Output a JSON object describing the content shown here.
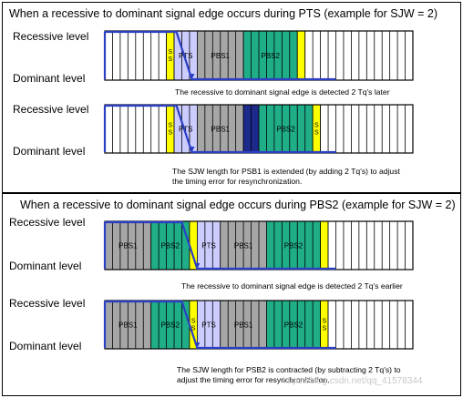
{
  "section1": {
    "title": "When a recessive to dominant signal edge occurs during PTS (example for SJW = 2)",
    "diagrams": [
      {
        "recessive_label": "Recessive level",
        "dominant_label": "Dominant level",
        "caption": [
          "The recessive to dominant signal edge is detected 2 Tq's later"
        ],
        "segments": [
          {
            "kind": "blank",
            "tq": 8
          },
          {
            "kind": "sync",
            "tq": 1,
            "label": "SS"
          },
          {
            "kind": "pts",
            "tq": 3,
            "label": "PTS"
          },
          {
            "kind": "pbs1",
            "tq": 6,
            "label": "PBS1"
          },
          {
            "kind": "pbs2",
            "tq": 7,
            "label": "PBS2"
          },
          {
            "kind": "sync",
            "tq": 1,
            "label": ""
          },
          {
            "kind": "blank",
            "tq": 14
          }
        ]
      },
      {
        "recessive_label": "Recessive level",
        "dominant_label": "Dominant level",
        "caption": [
          "The SJW length for PSB1 is extended (by adding 2 Tq's) to adjust",
          "the timing error for resynchronization."
        ],
        "segments": [
          {
            "kind": "blank",
            "tq": 8
          },
          {
            "kind": "sync",
            "tq": 1,
            "label": "SS"
          },
          {
            "kind": "pts",
            "tq": 3,
            "label": "PTS"
          },
          {
            "kind": "pbs1",
            "tq": 6,
            "label": "PBS1"
          },
          {
            "kind": "sjw",
            "tq": 2,
            "label": ""
          },
          {
            "kind": "pbs2",
            "tq": 7,
            "label": "PBS2"
          },
          {
            "kind": "sync",
            "tq": 1,
            "label": "SS"
          },
          {
            "kind": "blank",
            "tq": 12
          }
        ]
      }
    ]
  },
  "section2": {
    "title": "When a recessive to dominant signal edge occurs during PBS2 (example for SJW = 2)",
    "diagrams": [
      {
        "recessive_label": "Recessive level",
        "dominant_label": "Dominant level",
        "caption": [
          "The recessive to dominant signal edge is detected 2 Tq's earlier"
        ],
        "segments": [
          {
            "kind": "pbs1",
            "tq": 6,
            "label": "PBS1"
          },
          {
            "kind": "pbs2",
            "tq": 5,
            "label": "PBS2"
          },
          {
            "kind": "sync",
            "tq": 1,
            "label": ""
          },
          {
            "kind": "pts",
            "tq": 3,
            "label": "PTS"
          },
          {
            "kind": "pbs1",
            "tq": 6,
            "label": "PBS1"
          },
          {
            "kind": "pbs2",
            "tq": 7,
            "label": "PBS2"
          },
          {
            "kind": "sync",
            "tq": 1,
            "label": ""
          },
          {
            "kind": "blank",
            "tq": 11
          }
        ]
      },
      {
        "recessive_label": "Recessive level",
        "dominant_label": "Dominant level",
        "caption": [
          "The SJW length for PSB2 is contracted (by subtracting 2 Tq's) to",
          "adjust the timing error for resynchronization."
        ],
        "segments": [
          {
            "kind": "pbs1",
            "tq": 6,
            "label": "PBS1"
          },
          {
            "kind": "pbs2",
            "tq": 5,
            "label": "PBS2"
          },
          {
            "kind": "sync",
            "tq": 1,
            "label": "SS"
          },
          {
            "kind": "pts",
            "tq": 3,
            "label": "PTS"
          },
          {
            "kind": "pbs1",
            "tq": 6,
            "label": "PBS1"
          },
          {
            "kind": "pbs2",
            "tq": 7,
            "label": "PBS2"
          },
          {
            "kind": "sync",
            "tq": 1,
            "label": "SS"
          },
          {
            "kind": "blank",
            "tq": 11
          }
        ]
      }
    ]
  },
  "watermark": "https://blog.csdn.net/qq_41578344",
  "colors": {
    "pbs1": "#a6a6a6",
    "pbs2": "#1fae87",
    "sync": "#ffff00",
    "pts": "#ccccff",
    "sjw": "#1c2a8c",
    "blank": "#ffffff",
    "signal": "#2b3fc4",
    "grid": "#000000"
  }
}
